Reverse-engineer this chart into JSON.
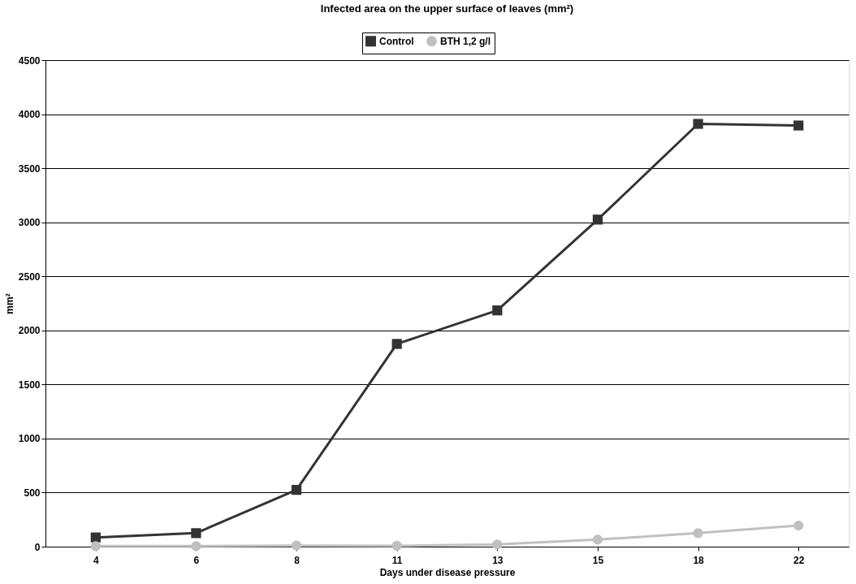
{
  "chart_data": {
    "type": "line",
    "title": "Infected area on the upper surface of leaves (mm²)",
    "xlabel": "Days under disease pressure",
    "ylabel": "mm²",
    "categories": [
      "4",
      "6",
      "8",
      "11",
      "13",
      "15",
      "18",
      "22"
    ],
    "series": [
      {
        "name": "Control",
        "color": "#333333",
        "marker": "square",
        "values": [
          85,
          125,
          525,
          1875,
          2185,
          3025,
          3910,
          3895
        ]
      },
      {
        "name": "BTH 1,2 g/l",
        "color": "#c0c0c0",
        "marker": "circle",
        "values": [
          5,
          5,
          10,
          8,
          20,
          65,
          125,
          195
        ]
      }
    ],
    "ylim": [
      0,
      4500
    ],
    "yticks": [
      0,
      500,
      1000,
      1500,
      2000,
      2500,
      3000,
      3500,
      4000,
      4500
    ],
    "grid": "y",
    "legend": "top",
    "line_style": "solid"
  }
}
